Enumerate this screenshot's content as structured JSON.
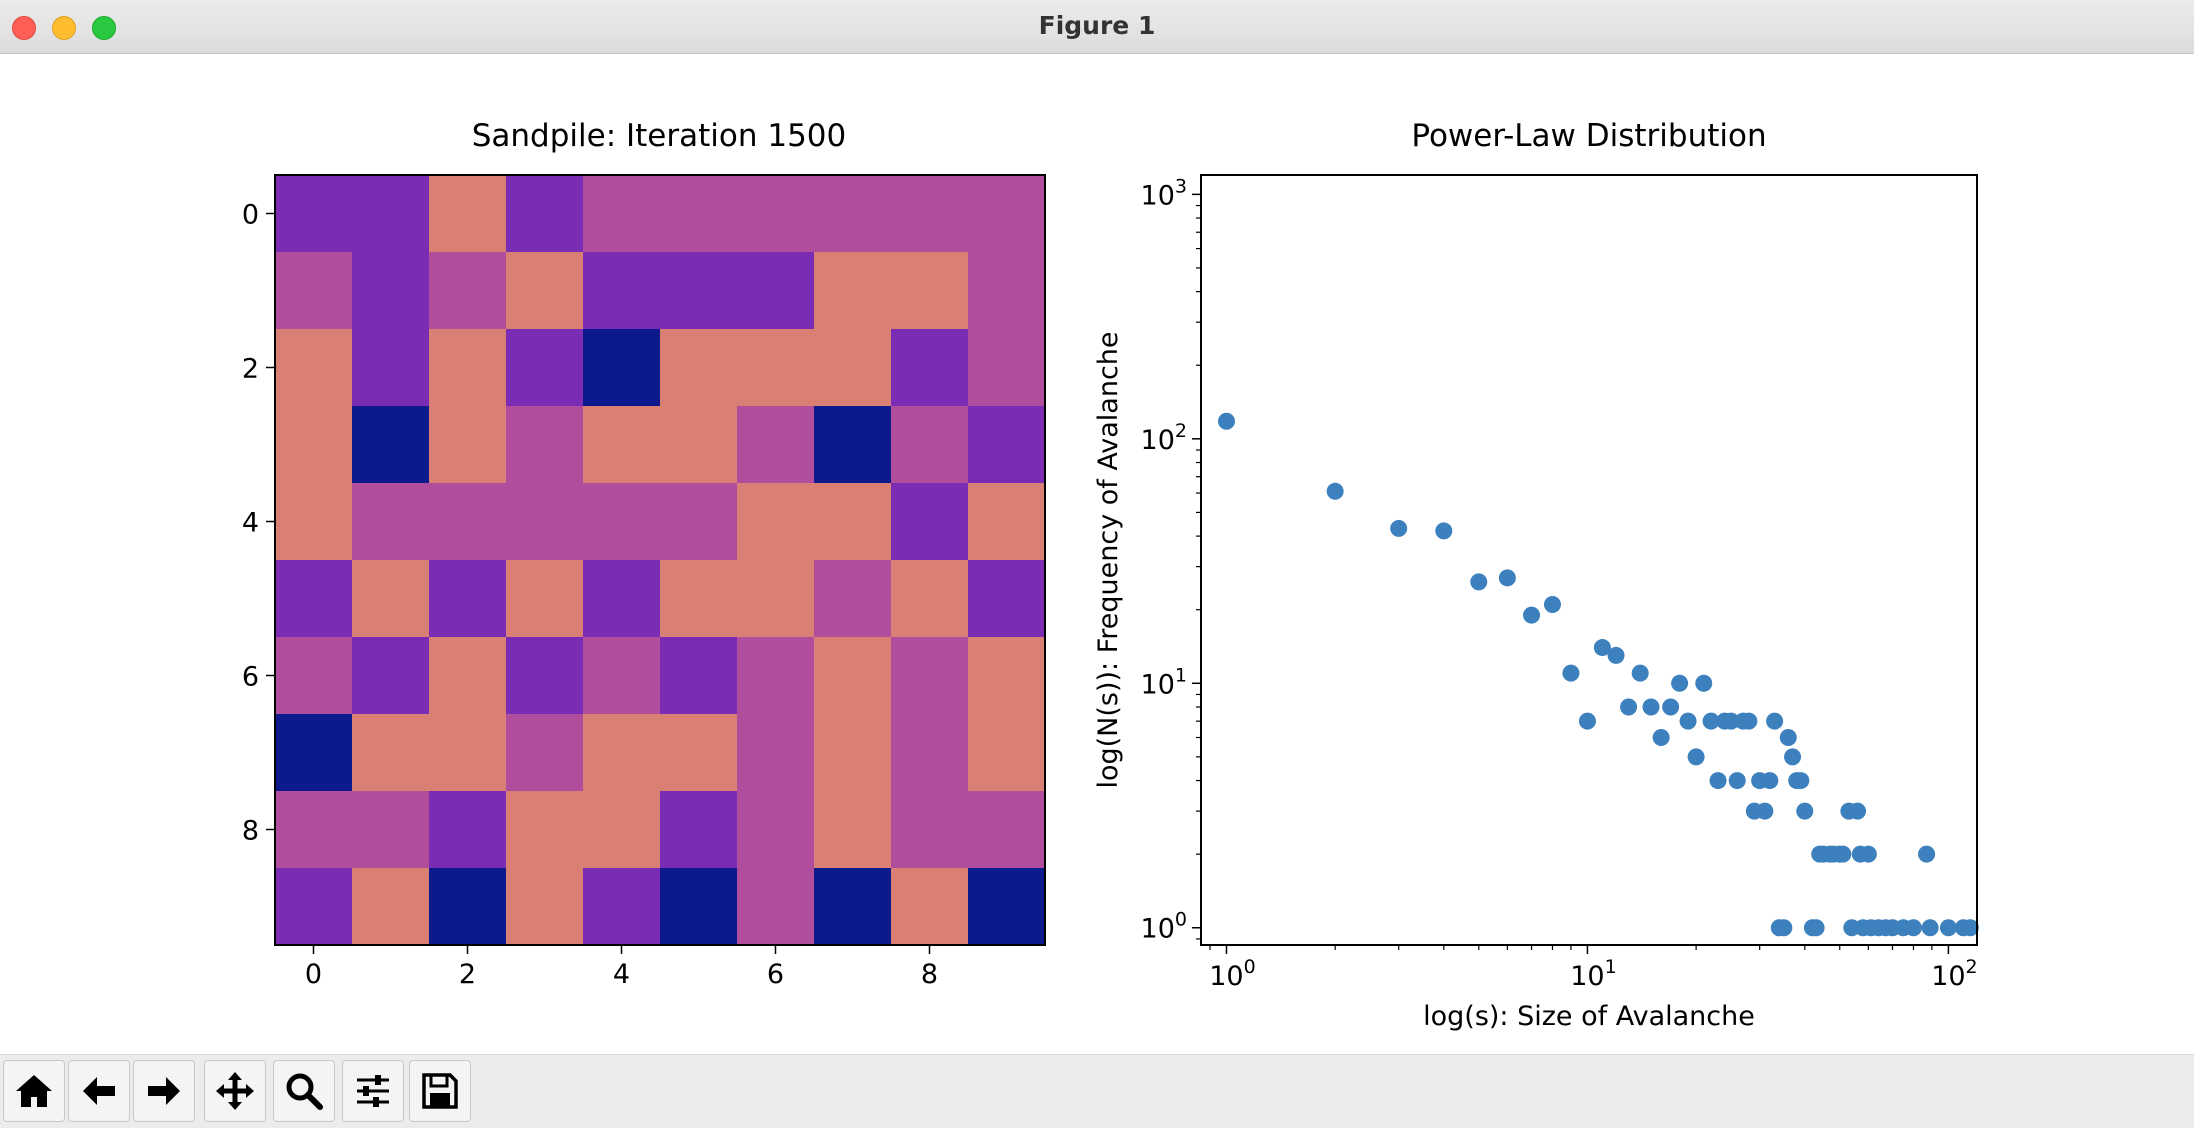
{
  "window": {
    "title": "Figure 1"
  },
  "toolbar": {
    "buttons": [
      {
        "name": "home-button",
        "icon": "home-icon"
      },
      {
        "name": "back-button",
        "icon": "arrow-left-icon"
      },
      {
        "name": "forward-button",
        "icon": "arrow-right-icon"
      },
      {
        "name": "pan-button",
        "icon": "move-icon"
      },
      {
        "name": "zoom-button",
        "icon": "magnifier-icon"
      },
      {
        "name": "configure-subplots-button",
        "icon": "sliders-icon"
      },
      {
        "name": "save-button",
        "icon": "floppy-disk-icon"
      }
    ]
  },
  "chart_data": [
    {
      "type": "heatmap",
      "title": "Sandpile: Iteration 1500",
      "xlabel": "",
      "ylabel": "",
      "xticks": [
        "0",
        "2",
        "4",
        "6",
        "8"
      ],
      "yticks": [
        "0",
        "2",
        "4",
        "6",
        "8"
      ],
      "colormap": {
        "0": "#0d1a8e",
        "1": "#7a2cb4",
        "2": "#b04d9c",
        "3": "#da7f74"
      },
      "grid": [
        [
          1,
          1,
          3,
          1,
          2,
          2,
          2,
          2,
          2,
          2
        ],
        [
          2,
          1,
          2,
          3,
          1,
          1,
          1,
          3,
          3,
          2
        ],
        [
          3,
          1,
          3,
          1,
          0,
          3,
          3,
          3,
          1,
          2
        ],
        [
          3,
          0,
          3,
          2,
          3,
          3,
          2,
          0,
          2,
          1
        ],
        [
          3,
          2,
          2,
          2,
          2,
          2,
          3,
          3,
          1,
          3
        ],
        [
          1,
          3,
          1,
          3,
          1,
          3,
          3,
          2,
          3,
          1
        ],
        [
          2,
          1,
          3,
          1,
          2,
          1,
          2,
          3,
          2,
          3
        ],
        [
          0,
          3,
          3,
          2,
          3,
          3,
          2,
          3,
          2,
          3
        ],
        [
          2,
          2,
          1,
          3,
          3,
          1,
          2,
          3,
          2,
          2
        ],
        [
          1,
          3,
          0,
          3,
          1,
          0,
          2,
          0,
          3,
          0
        ]
      ]
    },
    {
      "type": "scatter",
      "title": "Power-Law Distribution",
      "xlabel": "log(s): Size of Avalanche",
      "ylabel": "log(N(s)): Frequency of Avalanche",
      "xscale": "log",
      "yscale": "log",
      "xlim": [
        0.85,
        120
      ],
      "ylim": [
        0.85,
        1200
      ],
      "xticks": [
        {
          "base": "10",
          "exp": "0"
        },
        {
          "base": "10",
          "exp": "1"
        },
        {
          "base": "10",
          "exp": "2"
        }
      ],
      "yticks": [
        {
          "base": "10",
          "exp": "0"
        },
        {
          "base": "10",
          "exp": "1"
        },
        {
          "base": "10",
          "exp": "2"
        },
        {
          "base": "10",
          "exp": "3"
        }
      ],
      "color": "#3c80bd",
      "points": [
        [
          1,
          118
        ],
        [
          2,
          61
        ],
        [
          3,
          43
        ],
        [
          4,
          42
        ],
        [
          5,
          26
        ],
        [
          6,
          27
        ],
        [
          7,
          19
        ],
        [
          8,
          21
        ],
        [
          9,
          11
        ],
        [
          10,
          7
        ],
        [
          11,
          14
        ],
        [
          12,
          13
        ],
        [
          13,
          8
        ],
        [
          14,
          11
        ],
        [
          15,
          8
        ],
        [
          16,
          6
        ],
        [
          17,
          8
        ],
        [
          18,
          10
        ],
        [
          19,
          7
        ],
        [
          20,
          5
        ],
        [
          21,
          10
        ],
        [
          22,
          7
        ],
        [
          23,
          4
        ],
        [
          24,
          7
        ],
        [
          25,
          7
        ],
        [
          26,
          4
        ],
        [
          27,
          7
        ],
        [
          28,
          7
        ],
        [
          29,
          3
        ],
        [
          30,
          4
        ],
        [
          31,
          3
        ],
        [
          32,
          4
        ],
        [
          33,
          7
        ],
        [
          34,
          1
        ],
        [
          35,
          1
        ],
        [
          36,
          6
        ],
        [
          37,
          5
        ],
        [
          38,
          4
        ],
        [
          39,
          4
        ],
        [
          40,
          3
        ],
        [
          42,
          1
        ],
        [
          43,
          1
        ],
        [
          44,
          2
        ],
        [
          45,
          2
        ],
        [
          47,
          2
        ],
        [
          48,
          2
        ],
        [
          50,
          2
        ],
        [
          51,
          2
        ],
        [
          53,
          3
        ],
        [
          54,
          1
        ],
        [
          56,
          3
        ],
        [
          57,
          2
        ],
        [
          58,
          1
        ],
        [
          60,
          2
        ],
        [
          61,
          1
        ],
        [
          64,
          1
        ],
        [
          67,
          1
        ],
        [
          70,
          1
        ],
        [
          75,
          1
        ],
        [
          80,
          1
        ],
        [
          87,
          2
        ],
        [
          89,
          1
        ],
        [
          100,
          1
        ],
        [
          110,
          1
        ],
        [
          115,
          1
        ]
      ]
    }
  ]
}
